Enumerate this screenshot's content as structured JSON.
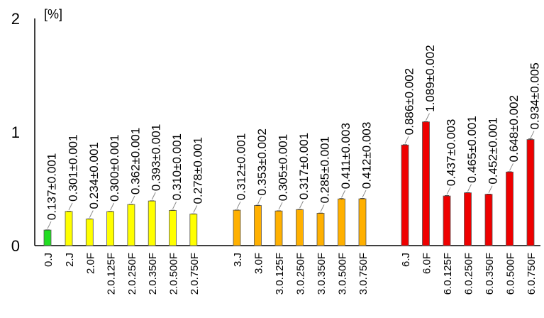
{
  "chart_data": {
    "type": "bar",
    "title": "",
    "xlabel": "",
    "ylabel": "[%]",
    "ylim": [
      0,
      2
    ],
    "yticks": [
      "0",
      "1",
      "2"
    ],
    "grid": false,
    "legend": "none",
    "categories": [
      "0.J",
      "2.J",
      "2.0F",
      "2.0.125F",
      "2.0.250F",
      "2.0.350F",
      "2.0.500F",
      "2.0.750F",
      "3.J",
      "3.0F",
      "3.0.125F",
      "3.0.250F",
      "3.0.350F",
      "3.0.500F",
      "3.0.750F",
      "6.J",
      "6.0F",
      "6.0.125F",
      "6.0.250F",
      "6.0.350F",
      "6.0.500F",
      "6.0.750F"
    ],
    "values": [
      0.137,
      0.301,
      0.234,
      0.3,
      0.362,
      0.393,
      0.31,
      0.278,
      0.312,
      0.353,
      0.305,
      0.317,
      0.285,
      0.411,
      0.412,
      0.886,
      1.089,
      0.437,
      0.465,
      0.452,
      0.648,
      0.934
    ],
    "errors": [
      0.001,
      0.001,
      0.001,
      0.001,
      0.001,
      0.001,
      0.001,
      0.001,
      0.001,
      0.002,
      0.001,
      0.001,
      0.001,
      0.003,
      0.003,
      0.002,
      0.002,
      0.003,
      0.001,
      0.001,
      0.002,
      0.005
    ],
    "data_labels": [
      "0.137±0.001",
      "0.301±0.001",
      "0.234±0.001",
      "0.300±0.001",
      "0.362±0.001",
      "0.393±0.001",
      "0.310±0.001",
      "0.278±0.001",
      "0.312±0.001",
      "0.353±0.002",
      "0.305±0.001",
      "0.317±0.001",
      "0.285±0.001",
      "0.411±0.003",
      "0.412±0.003",
      "0.886±0.002",
      "1.089±0.002",
      "0.437±0.003",
      "0.465±0.001",
      "0.452±0.001",
      "0.648±0.002",
      "0.934±0.005"
    ],
    "colors": [
      "#22dd22",
      "#ffff00",
      "#ffff00",
      "#ffff00",
      "#ffff00",
      "#ffff00",
      "#ffff00",
      "#ffff00",
      "#ffb000",
      "#ffb000",
      "#ffb000",
      "#ffb000",
      "#ffb000",
      "#ffb000",
      "#ffb000",
      "#ee0000",
      "#ee0000",
      "#ee0000",
      "#ee0000",
      "#ee0000",
      "#ee0000",
      "#ee0000"
    ]
  }
}
